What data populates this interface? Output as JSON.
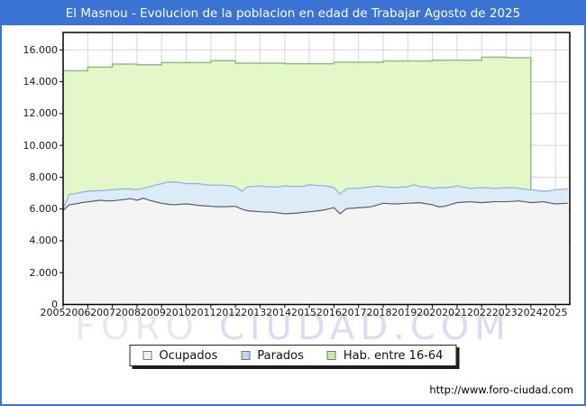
{
  "title": "El Masnou - Evolucion de la poblacion en edad de Trabajar Agosto de 2025",
  "watermark": {
    "left": "FORO",
    "right": "CIUDAD.COM"
  },
  "footer": {
    "url": "http://www.foro-ciudad.com"
  },
  "legend": {
    "items": [
      {
        "label": "Ocupados",
        "swatch_fill": "#f0f0f0",
        "swatch_border": "#777777"
      },
      {
        "label": "Parados",
        "swatch_fill": "#b9d7f2",
        "swatch_border": "#777777"
      },
      {
        "label": "Hab. entre 16-64",
        "swatch_fill": "#c9ef9e",
        "swatch_border": "#777777"
      }
    ]
  },
  "colors": {
    "frame_blue": "#3a73d4",
    "title_bg": "#3a73d4",
    "title_text": "#ffffff",
    "grid": "#d6d6d6",
    "plot_border": "#000000",
    "hab_fill": "#e4f7c8",
    "hab_line": "#86c386",
    "parados_fill": "#dcebf8",
    "parados_line": "#8fb4e0",
    "ocupados_fill": "#f4f4f4",
    "ocupados_line": "#5f5f5f",
    "watermark_gray": "#e9e9e9",
    "watermark_blue": "#dadcf6",
    "axis_text": "#1a1a1a"
  },
  "chart_data": {
    "type": "area",
    "title": "El Masnou - Evolucion de la poblacion en edad de Trabajar Agosto de 2025",
    "xlabel": "",
    "ylabel": "",
    "xlim": [
      2005,
      2025.58
    ],
    "ylim": [
      0,
      17100
    ],
    "grid": true,
    "legend_position": "bottom-center",
    "x_tick_labels": [
      "2005",
      "2006",
      "2007",
      "2008",
      "2009",
      "2010",
      "2011",
      "2012",
      "2013",
      "2014",
      "2015",
      "2016",
      "2017",
      "2018",
      "2019",
      "2020",
      "2021",
      "2022",
      "2023",
      "2024",
      "2025"
    ],
    "y_ticks": [
      0,
      2000,
      4000,
      6000,
      8000,
      10000,
      12000,
      14000,
      16000
    ],
    "y_tick_labels": [
      "0",
      "2.000",
      "4.000",
      "6.000",
      "8.000",
      "10.000",
      "12.000",
      "14.000",
      "16.000"
    ],
    "series": [
      {
        "name": "Hab. entre 16-64",
        "type": "step-area",
        "years": [
          2005,
          2006,
          2007,
          2008,
          2009,
          2010,
          2011,
          2012,
          2013,
          2014,
          2015,
          2016,
          2017,
          2018,
          2019,
          2020,
          2021,
          2022,
          2023
        ],
        "values": [
          14690,
          14920,
          15110,
          15070,
          15200,
          15200,
          15320,
          15170,
          15170,
          15130,
          15130,
          15220,
          15220,
          15300,
          15300,
          15350,
          15350,
          15540,
          15510
        ],
        "step_end": 2024
      },
      {
        "name": "Ocupados",
        "type": "area",
        "t_start": 2005,
        "t_step": 0.25,
        "values": [
          5900,
          6270,
          6320,
          6400,
          6450,
          6500,
          6550,
          6520,
          6510,
          6560,
          6600,
          6650,
          6550,
          6680,
          6550,
          6450,
          6360,
          6300,
          6270,
          6300,
          6320,
          6280,
          6230,
          6200,
          6170,
          6150,
          6140,
          6160,
          6170,
          6000,
          5890,
          5860,
          5830,
          5810,
          5800,
          5750,
          5700,
          5720,
          5740,
          5790,
          5830,
          5870,
          5910,
          5990,
          6080,
          5700,
          6020,
          6050,
          6080,
          6110,
          6140,
          6250,
          6360,
          6340,
          6320,
          6340,
          6360,
          6380,
          6400,
          6330,
          6270,
          6140,
          6170,
          6280,
          6400,
          6430,
          6460,
          6430,
          6400,
          6430,
          6460,
          6460,
          6460,
          6480,
          6510,
          6460,
          6400,
          6430,
          6460,
          6390,
          6320,
          6340,
          6360
        ]
      },
      {
        "name": "Parados",
        "type": "area-stacked-on-ocupados",
        "t_start": 2005,
        "t_step": 0.25,
        "values": [
          90,
          660,
          645,
          660,
          670,
          640,
          605,
          660,
          705,
          680,
          670,
          600,
          665,
          620,
          850,
          1050,
          1230,
          1400,
          1430,
          1360,
          1270,
          1320,
          1360,
          1330,
          1330,
          1350,
          1360,
          1310,
          1230,
          1120,
          1510,
          1560,
          1625,
          1600,
          1590,
          1640,
          1755,
          1710,
          1680,
          1640,
          1700,
          1620,
          1560,
          1440,
          1265,
          1230,
          1250,
          1255,
          1225,
          1240,
          1260,
          1190,
          1040,
          1030,
          1025,
          1040,
          1040,
          1150,
          1000,
          1070,
          1035,
          1205,
          1175,
          1095,
          1055,
          945,
          845,
          890,
          945,
          900,
          845,
          855,
          885,
          855,
          795,
          785,
          815,
          740,
          660,
          755,
          895,
          905,
          910
        ]
      }
    ]
  }
}
